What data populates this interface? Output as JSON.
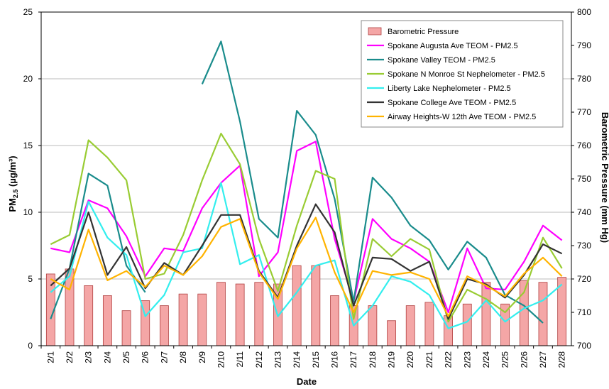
{
  "chart_data": {
    "type": "bar+line",
    "xlabel": "Date",
    "ylabel_left": "PM",
    "ylabel_left_sub": "2.5",
    "ylabel_left_unit": " (µg/m³)",
    "ylabel_right": "Barometric Pressure (mm Hg)",
    "ylim_left": [
      0,
      25
    ],
    "ylim_right": [
      700,
      800
    ],
    "yticks_left": [
      "0",
      "5",
      "10",
      "15",
      "20",
      "25"
    ],
    "yticks_right": [
      "700",
      "710",
      "720",
      "730",
      "740",
      "750",
      "760",
      "770",
      "780",
      "790",
      "800"
    ],
    "grid": true,
    "legend_position": "top-right",
    "categories": [
      "2/1",
      "2/2",
      "2/3",
      "2/4",
      "2/5",
      "2/6",
      "2/7",
      "2/8",
      "2/9",
      "2/10",
      "2/11",
      "2/12",
      "2/13",
      "2/14",
      "2/15",
      "2/16",
      "2/17",
      "2/18",
      "2/19",
      "2/20",
      "2/21",
      "2/22",
      "2/23",
      "2/24",
      "2/25",
      "2/26",
      "2/27",
      "2/28"
    ],
    "bar_series": {
      "name": "Barometric Pressure",
      "axis": "right",
      "color": "#f4a6a6",
      "values": [
        721.5,
        723,
        718,
        715,
        710.5,
        713.5,
        712,
        715.5,
        715.5,
        719,
        718.5,
        719,
        718.5,
        724,
        724,
        715,
        712,
        712,
        707.5,
        712,
        713,
        709,
        712.5,
        719,
        712.5,
        719.5,
        719,
        720.5
      ]
    },
    "series": [
      {
        "name": "Spokane Augusta Ave TEOM - PM2.5",
        "color": "#ff00ff",
        "values": [
          7.3,
          7.0,
          10.9,
          10.3,
          8.2,
          5.2,
          7.3,
          7.1,
          10.3,
          12.2,
          13.5,
          5.2,
          7.0,
          14.6,
          15.3,
          8.0,
          3.3,
          9.5,
          8.0,
          7.3,
          6.3,
          2.5,
          7.3,
          4.3,
          4.2,
          6.3,
          9.0,
          7.9
        ]
      },
      {
        "name": "Spokane Valley TEOM - PM2.5",
        "color": "#1a8c8c",
        "values": [
          null,
          null,
          null,
          null,
          null,
          null,
          null,
          null,
          19.6,
          22.8,
          16.8,
          9.5,
          8.1,
          17.6,
          15.8,
          11.0,
          3.3,
          12.6,
          11.1,
          9.0,
          7.9,
          5.7,
          7.8,
          6.6,
          3.8,
          3.0,
          1.7,
          null
        ],
        "extra_start": [
          2.0,
          5.8,
          12.9,
          12.0,
          6.0,
          4.0
        ]
      },
      {
        "name": "Spokane N Monroe St Nephelometer - PM2.5",
        "color": "#99cc33",
        "values": [
          7.6,
          8.3,
          15.4,
          14.1,
          12.4,
          5.0,
          5.4,
          8.3,
          12.4,
          15.9,
          13.6,
          8.0,
          4.1,
          9.0,
          13.1,
          12.5,
          2.0,
          8.0,
          6.7,
          8.0,
          7.2,
          1.8,
          4.2,
          3.5,
          2.5,
          4.0,
          8.1,
          5.8
        ]
      },
      {
        "name": "Liberty Lake Nephelometer - PM2.5",
        "color": "#33eeee",
        "values": [
          4.0,
          5.2,
          10.8,
          8.1,
          6.8,
          2.2,
          3.8,
          7.0,
          7.3,
          12.2,
          6.1,
          6.8,
          2.2,
          4.0,
          6.0,
          6.4,
          1.5,
          3.0,
          5.2,
          4.8,
          3.8,
          1.3,
          1.8,
          3.4,
          1.8,
          2.8,
          3.4,
          4.6
        ]
      },
      {
        "name": "Spokane College Ave TEOM - PM2.5",
        "color": "#333333",
        "values": [
          4.5,
          5.8,
          10.0,
          5.3,
          7.4,
          4.3,
          6.2,
          5.3,
          7.5,
          9.8,
          9.8,
          5.6,
          3.6,
          7.5,
          10.6,
          8.5,
          3.0,
          6.6,
          6.5,
          5.6,
          6.3,
          2.0,
          5.0,
          4.6,
          3.6,
          5.3,
          7.6,
          6.9
        ]
      },
      {
        "name": "Airway Heights-W 12th Ave TEOM - PM2.5",
        "color": "#ffb300",
        "values": [
          5.0,
          4.2,
          8.7,
          4.9,
          5.6,
          4.4,
          6.0,
          5.3,
          6.7,
          8.9,
          9.5,
          5.5,
          3.5,
          7.3,
          9.6,
          5.5,
          2.5,
          5.6,
          5.3,
          5.5,
          5.0,
          2.2,
          5.2,
          4.5,
          3.7,
          5.4,
          6.6,
          5.2
        ]
      }
    ]
  }
}
